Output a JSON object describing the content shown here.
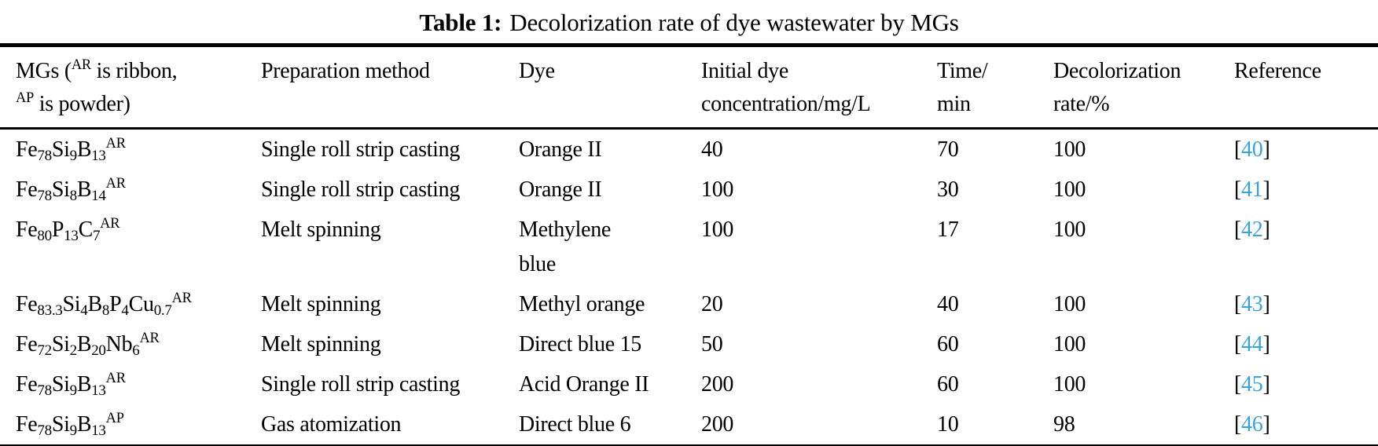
{
  "title": {
    "label": "Table 1:",
    "caption": "Decolorization rate of dye wastewater by MGs"
  },
  "colors": {
    "reference_blue": "#38a3dc",
    "text": "#000000",
    "background": "#ffffff"
  },
  "table": {
    "columns": [
      {
        "key": "mg",
        "label": "MGs (^{AR} is ribbon,\n^{AP} is powder)"
      },
      {
        "key": "prep",
        "label": "Preparation method"
      },
      {
        "key": "dye",
        "label": "Dye"
      },
      {
        "key": "conc",
        "label": "Initial dye\nconcentration/mg/L"
      },
      {
        "key": "time",
        "label": "Time/\nmin"
      },
      {
        "key": "rate",
        "label": "Decolorization\nrate/%"
      },
      {
        "key": "ref",
        "label": "Reference"
      }
    ],
    "rows": [
      {
        "mg": "Fe_{78}Si_{9}B_{13}^{AR}",
        "prep": "Single roll strip casting",
        "dye": "Orange II",
        "conc": "40",
        "time": "70",
        "rate": "100",
        "ref": {
          "open": "[",
          "number": "40",
          "close": "]"
        }
      },
      {
        "mg": "Fe_{78}Si_{8}B_{14}^{AR}",
        "prep": "Single roll strip casting",
        "dye": "Orange II",
        "conc": "100",
        "time": "30",
        "rate": "100",
        "ref": {
          "open": "[",
          "number": "41",
          "close": "]"
        }
      },
      {
        "mg": "Fe_{80}P_{13}C_{7}^{AR}",
        "prep": "Melt spinning",
        "dye": "Methylene\nblue",
        "conc": "100",
        "time": "17",
        "rate": "100",
        "ref": {
          "open": "[",
          "number": "42",
          "close": "]"
        }
      },
      {
        "mg": "Fe_{83.3}Si_{4}B_{8}P_{4}Cu_{0.7}^{AR}",
        "prep": "Melt spinning",
        "dye": "Methyl orange",
        "conc": "20",
        "time": "40",
        "rate": "100",
        "ref": {
          "open": "[",
          "number": "43",
          "close": "]"
        }
      },
      {
        "mg": "Fe_{72}Si_{2}B_{20}Nb_{6}^{AR}",
        "prep": "Melt spinning",
        "dye": "Direct blue 15",
        "conc": "50",
        "time": "60",
        "rate": "100",
        "ref": {
          "open": "[",
          "number": "44",
          "close": "]"
        }
      },
      {
        "mg": "Fe_{78}Si_{9}B_{13}^{AR}",
        "prep": "Single roll strip casting",
        "dye": "Acid Orange II",
        "conc": "200",
        "time": "60",
        "rate": "100",
        "ref": {
          "open": "[",
          "number": "45",
          "close": "]"
        }
      },
      {
        "mg": "Fe_{78}Si_{9}B_{13}^{AP}",
        "prep": "Gas atomization",
        "dye": "Direct blue 6",
        "conc": "200",
        "time": "10",
        "rate": "98",
        "ref": {
          "open": "[",
          "number": "46",
          "close": "]"
        }
      }
    ]
  }
}
